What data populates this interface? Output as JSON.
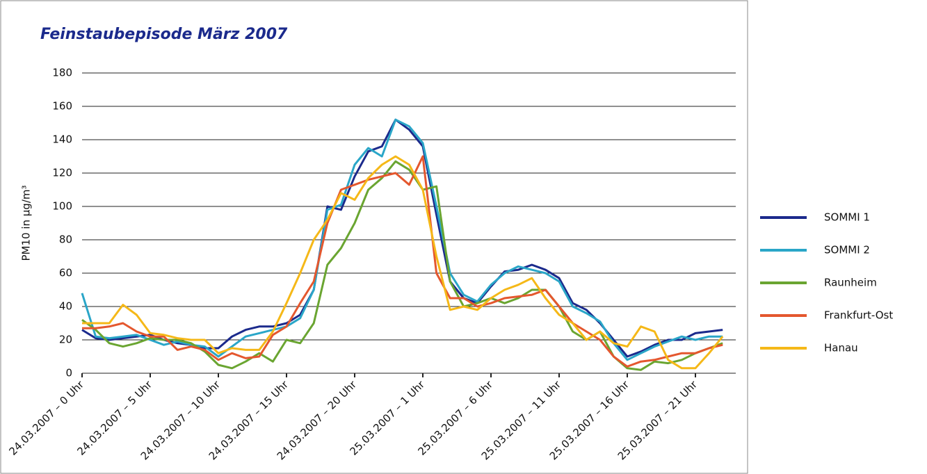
{
  "chart_data": {
    "type": "line",
    "title": "Feinstaubepisode März 2007",
    "y_label": "PM10 in µg/m³",
    "categories": [
      "24.03.2007 – 0 Uhr",
      null,
      null,
      null,
      null,
      "24.03.2007 – 5 Uhr",
      null,
      null,
      null,
      null,
      "24.03.2007 – 10 Uhr",
      null,
      null,
      null,
      null,
      "24.03.2007 – 15 Uhr",
      null,
      null,
      null,
      null,
      "24.03.2007 – 20 Uhr",
      null,
      null,
      null,
      null,
      "25.03.2007 – 1 Uhr",
      null,
      null,
      null,
      null,
      "25.03.2007 – 6 Uhr",
      null,
      null,
      null,
      null,
      "25.03.2007 – 11 Uhr",
      null,
      null,
      null,
      null,
      "25.03.2007 – 16 Uhr",
      null,
      null,
      null,
      null,
      "25.03.2007 – 21 Uhr",
      null,
      null
    ],
    "series": [
      {
        "name": "SOMMI 1",
        "color": "#1b2a8c",
        "values": [
          26,
          21,
          20,
          21,
          22,
          23,
          20,
          18,
          17,
          15,
          15,
          22,
          26,
          28,
          28,
          30,
          35,
          50,
          100,
          98,
          118,
          133,
          136,
          152,
          146,
          136,
          95,
          55,
          45,
          42,
          52,
          61,
          62,
          65,
          62,
          57,
          42,
          38,
          30,
          20,
          10,
          13,
          17,
          20,
          20,
          24,
          25,
          26
        ]
      },
      {
        "name": "SOMMI 2",
        "color": "#2aa6c8",
        "values": [
          48,
          22,
          21,
          22,
          23,
          20,
          17,
          19,
          17,
          16,
          10,
          16,
          22,
          24,
          26,
          28,
          33,
          50,
          98,
          101,
          125,
          135,
          130,
          152,
          148,
          138,
          100,
          60,
          47,
          43,
          53,
          60,
          64,
          62,
          60,
          55,
          40,
          36,
          31,
          18,
          8,
          12,
          16,
          19,
          22,
          20,
          22,
          22
        ]
      },
      {
        "name": "Raunheim",
        "color": "#6aa531",
        "values": [
          32,
          26,
          18,
          16,
          18,
          21,
          20,
          20,
          18,
          13,
          5,
          3,
          7,
          12,
          7,
          20,
          18,
          30,
          65,
          75,
          90,
          110,
          117,
          127,
          122,
          110,
          112,
          55,
          40,
          42,
          45,
          42,
          45,
          50,
          50,
          40,
          25,
          20,
          25,
          10,
          3,
          2,
          7,
          6,
          8,
          12,
          15,
          18
        ]
      },
      {
        "name": "Frankfurt-Ost",
        "color": "#e4572e",
        "values": [
          27,
          27,
          28,
          30,
          25,
          22,
          22,
          14,
          16,
          14,
          8,
          12,
          9,
          10,
          23,
          28,
          42,
          55,
          90,
          110,
          113,
          116,
          118,
          120,
          113,
          130,
          60,
          45,
          45,
          40,
          42,
          45,
          46,
          47,
          50,
          40,
          30,
          25,
          20,
          10,
          4,
          7,
          8,
          10,
          12,
          12,
          15,
          17
        ]
      },
      {
        "name": "Hanau",
        "color": "#f5b818",
        "values": [
          30,
          30,
          30,
          41,
          35,
          24,
          23,
          21,
          20,
          20,
          12,
          15,
          14,
          14,
          25,
          42,
          60,
          80,
          92,
          108,
          104,
          117,
          125,
          130,
          125,
          110,
          70,
          38,
          40,
          38,
          45,
          50,
          53,
          57,
          45,
          35,
          30,
          20,
          25,
          18,
          16,
          28,
          25,
          8,
          3,
          3,
          12,
          22
        ]
      }
    ],
    "ylim": [
      0,
      180
    ],
    "yticks": [
      0,
      20,
      40,
      60,
      80,
      100,
      120,
      140,
      160,
      180
    ],
    "grid": true,
    "legend": "right"
  }
}
